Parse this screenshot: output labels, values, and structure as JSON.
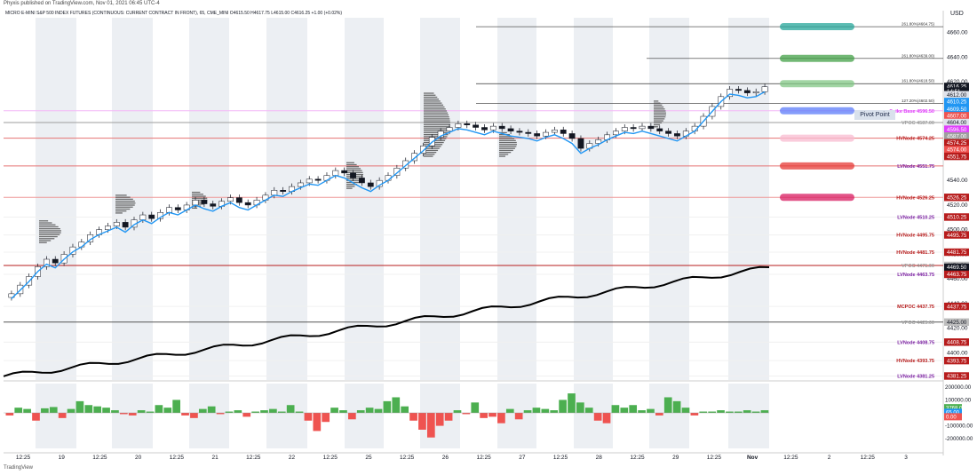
{
  "header": {
    "published": "Phyxis published on TradingView.com, Nov 01, 2021 06:45 UTC-4",
    "symbol_line": "MICRO E-MINI S&P 500 INDEX FUTURES (CONTINUOUS: CURRENT CONTRACT IN FRONT), 65, CME_MINI  O4615.50  H4617.75  L4615.00  C4616.25  +1.00 (+0.02%)",
    "currency": "USD"
  },
  "footer": {
    "brand": "TradingView"
  },
  "pivot_label": "Pivot Point",
  "colors": {
    "up": "#4caf50",
    "down": "#ef5350",
    "band": "#eceff3",
    "vwap": "#2196f3",
    "cumdelta": "#000000",
    "profile": "#555555",
    "hvnode": "#b71c1c",
    "lvnode": "#7b1fa2"
  },
  "chart_data": [
    {
      "type": "line",
      "title": "",
      "ylim": [
        4378,
        4672
      ],
      "y_ticks": [
        4380.0,
        4400.0,
        4420.0,
        4440.0,
        4460.0,
        4480.0,
        4500.0,
        4520.0,
        4540.0,
        4560.0,
        4580.0,
        4600.0,
        4620.0,
        4640.0,
        4660.0
      ],
      "x_tick_labels": [
        "12:25",
        "19",
        "12:25",
        "20",
        "12:25",
        "21",
        "12:25",
        "22",
        "12:25",
        "25",
        "12:25",
        "26",
        "12:25",
        "27",
        "12:25",
        "28",
        "12:25",
        "29",
        "12:25",
        "Nov",
        "12:25",
        "2",
        "12:25",
        "3"
      ],
      "price_tags": [
        {
          "label": "4616.25",
          "value": 4616.25,
          "bg": "#131722",
          "fg": "#ffffff"
        },
        {
          "label": "14:51",
          "value": 4612.5,
          "bg": "#131722",
          "fg": "#ffffff"
        },
        {
          "label": "4612.00",
          "value": 4609.5,
          "bg": "#e0e3eb",
          "fg": "#131722"
        },
        {
          "label": "4610.25",
          "value": 4604.0,
          "bg": "#2196f3",
          "fg": "#ffffff"
        },
        {
          "label": "4609.50",
          "value": 4598.0,
          "bg": "#2196f3",
          "fg": "#ffffff"
        },
        {
          "label": "4607.00",
          "value": 4592.5,
          "bg": "#ef5350",
          "fg": "#ffffff"
        },
        {
          "label": "4604.00",
          "value": 4587.0,
          "bg": "#e0e3eb",
          "fg": "#131722"
        },
        {
          "label": "4596.50",
          "value": 4581.5,
          "bg": "#e040fb",
          "fg": "#ffffff"
        },
        {
          "label": "4587.00",
          "value": 4576.0,
          "bg": "#9e9e9e",
          "fg": "#ffffff"
        },
        {
          "label": "4574.25",
          "value": 4570.5,
          "bg": "#b71c1c",
          "fg": "#ffffff"
        },
        {
          "label": "4574.00",
          "value": 4565.0,
          "bg": "#ef5350",
          "fg": "#ffffff"
        },
        {
          "label": "4551.75",
          "value": 4559.5,
          "bg": "#b71c1c",
          "fg": "#ffffff"
        },
        {
          "label": "4526.25",
          "value": 4526.25,
          "bg": "#b71c1c",
          "fg": "#ffffff"
        },
        {
          "label": "4510.25",
          "value": 4510.25,
          "bg": "#b71c1c",
          "fg": "#ffffff"
        },
        {
          "label": "4495.75",
          "value": 4495.75,
          "bg": "#b71c1c",
          "fg": "#ffffff"
        },
        {
          "label": "4481.75",
          "value": 4481.75,
          "bg": "#b71c1c",
          "fg": "#ffffff"
        },
        {
          "label": "4471.00",
          "value": 4471.0,
          "bg": "#bdbdbd",
          "fg": "#131722"
        },
        {
          "label": "4469.50",
          "value": 4469.5,
          "bg": "#131722",
          "fg": "#ffffff"
        },
        {
          "label": "4463.75",
          "value": 4463.75,
          "bg": "#b71c1c",
          "fg": "#ffffff"
        },
        {
          "label": "4437.75",
          "value": 4437.75,
          "bg": "#b71c1c",
          "fg": "#ffffff"
        },
        {
          "label": "4425.00",
          "value": 4425.0,
          "bg": "#bdbdbd",
          "fg": "#131722"
        },
        {
          "label": "4408.75",
          "value": 4408.75,
          "bg": "#b71c1c",
          "fg": "#ffffff"
        },
        {
          "label": "4393.75",
          "value": 4393.75,
          "bg": "#b71c1c",
          "fg": "#ffffff"
        },
        {
          "label": "4381.25",
          "value": 4381.25,
          "bg": "#b71c1c",
          "fg": "#ffffff"
        }
      ],
      "levels": [
        {
          "label": "Spike Base 4596.50",
          "value": 4596.5,
          "color": "#e040fb",
          "line": "#f3b5f7"
        },
        {
          "label": "VPOC 4587.00",
          "value": 4587.0,
          "color": "#9e9e9e",
          "line": "#9e9e9e"
        },
        {
          "label": "HVNode 4574.25",
          "value": 4574.25,
          "color": "#b71c1c",
          "line": "#e57373"
        },
        {
          "label": "LVNode 4551.75",
          "value": 4551.75,
          "color": "#7b1fa2",
          "line": "#e57373"
        },
        {
          "label": "HVNode 4526.25",
          "value": 4526.25,
          "color": "#b71c1c",
          "line": "#ef9a9a"
        },
        {
          "label": "LVNode 4510.25",
          "value": 4510.25,
          "color": "#7b1fa2",
          "line": "#f0f0f0"
        },
        {
          "label": "HVNode 4495.75",
          "value": 4495.75,
          "color": "#b71c1c",
          "line": "#f0f0f0"
        },
        {
          "label": "HVNode 4481.75",
          "value": 4481.75,
          "color": "#b71c1c",
          "line": "#f0f0f0"
        },
        {
          "label": "VPOC 4471.00",
          "value": 4471.0,
          "color": "#9e9e9e",
          "line": "#b71c1c"
        },
        {
          "label": "LVNode 4463.75",
          "value": 4463.75,
          "color": "#7b1fa2",
          "line": "#f0f0f0"
        },
        {
          "label": "MCPOC 4437.75",
          "value": 4437.75,
          "color": "#b71c1c",
          "line": "#f0f0f0"
        },
        {
          "label": "VPOC 4425.00",
          "value": 4425.0,
          "color": "#9e9e9e",
          "line": "#555555"
        },
        {
          "label": "LVNode 4408.75",
          "value": 4408.75,
          "color": "#7b1fa2",
          "line": "#f0f0f0"
        },
        {
          "label": "HVNode 4393.75",
          "value": 4393.75,
          "color": "#b71c1c",
          "line": "#f0f0f0"
        },
        {
          "label": "LVNode 4381.25",
          "value": 4381.25,
          "color": "#7b1fa2",
          "line": "#f0f0f0"
        }
      ],
      "fib_levels": [
        {
          "label": "261.80%(4664.75)",
          "value": 4664.75
        },
        {
          "label": "261.80%(4639.00)",
          "value": 4639.0
        },
        {
          "label": "161.80%(4618.50)",
          "value": 4618.5
        },
        {
          "label": "127.20%(4602.50)",
          "value": 4602.5
        }
      ],
      "target_zones": [
        {
          "value": 4664.75,
          "color": "#26a69a"
        },
        {
          "value": 4639.0,
          "color": "#43a047"
        },
        {
          "value": 4618.5,
          "color": "#81c784"
        },
        {
          "value": 4596.5,
          "color": "#5c7cfa"
        },
        {
          "value": 4574.25,
          "color": "#f8bbd0"
        },
        {
          "value": 4551.75,
          "color": "#e53935"
        },
        {
          "value": 4526.25,
          "color": "#d81b60"
        }
      ],
      "close_series": [
        4448,
        4455,
        4462,
        4470,
        4476,
        4473,
        4480,
        4486,
        4490,
        4496,
        4500,
        4503,
        4506,
        4502,
        4508,
        4512,
        4509,
        4514,
        4518,
        4516,
        4520,
        4524,
        4521,
        4519,
        4523,
        4526,
        4522,
        4520,
        4524,
        4528,
        4532,
        4531,
        4535,
        4538,
        4541,
        4540,
        4544,
        4548,
        4546,
        4542,
        4538,
        4535,
        4540,
        4544,
        4550,
        4556,
        4562,
        4568,
        4575,
        4580,
        4583,
        4586,
        4585,
        4583,
        4581,
        4584,
        4582,
        4580,
        4579,
        4578,
        4576,
        4579,
        4581,
        4578,
        4574,
        4566,
        4570,
        4573,
        4577,
        4580,
        4583,
        4582,
        4584,
        4582,
        4580,
        4578,
        4576,
        4580,
        4584,
        4592,
        4600,
        4608,
        4614,
        4613,
        4611,
        4612,
        4616
      ]
    },
    {
      "type": "bar",
      "title": "",
      "ylim": [
        -250000,
        250000
      ],
      "y_ticks": [
        -200000.0,
        -100000.0,
        0.0,
        100000.0,
        200000.0
      ],
      "value_tags": [
        {
          "label": "3768.00",
          "value": 40000,
          "bg": "#4caf50",
          "fg": "#ffffff"
        },
        {
          "label": "65.00",
          "value": 5000,
          "bg": "#2196f3",
          "fg": "#ffffff"
        },
        {
          "label": "0.00",
          "value": -30000,
          "bg": "#ef5350",
          "fg": "#ffffff"
        }
      ],
      "values": [
        -20000,
        40000,
        30000,
        -60000,
        35000,
        45000,
        -40000,
        30000,
        90000,
        60000,
        50000,
        40000,
        20000,
        -10000,
        -20000,
        20000,
        10000,
        60000,
        40000,
        100000,
        -20000,
        -40000,
        30000,
        50000,
        -10000,
        10000,
        20000,
        -30000,
        10000,
        20000,
        30000,
        10000,
        60000,
        10000,
        -60000,
        -140000,
        -70000,
        40000,
        20000,
        -50000,
        20000,
        40000,
        30000,
        90000,
        120000,
        50000,
        -60000,
        -130000,
        -190000,
        -100000,
        -60000,
        20000,
        -10000,
        80000,
        -40000,
        -30000,
        -80000,
        30000,
        -50000,
        20000,
        40000,
        30000,
        20000,
        100000,
        150000,
        80000,
        40000,
        -60000,
        -80000,
        60000,
        40000,
        60000,
        20000,
        30000,
        -20000,
        120000,
        90000,
        40000,
        -20000,
        10000,
        10000,
        20000,
        10000,
        10000,
        20000,
        10000,
        20000
      ]
    }
  ]
}
